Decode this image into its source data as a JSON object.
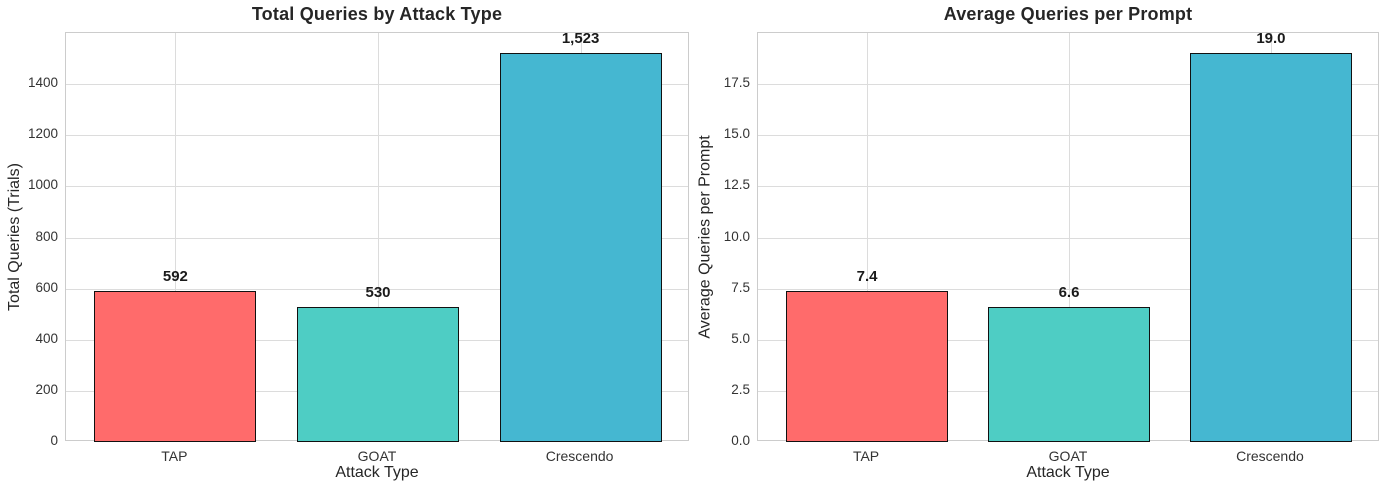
{
  "chart_data": [
    {
      "type": "bar",
      "title": "Total Queries by Attack Type",
      "xlabel": "Attack Type",
      "ylabel": "Total Queries (Trials)",
      "categories": [
        "TAP",
        "GOAT",
        "Crescendo"
      ],
      "values": [
        592,
        530,
        1523
      ],
      "value_labels": [
        "592",
        "530",
        "1,523"
      ],
      "yticks": [
        0,
        200,
        400,
        600,
        800,
        1000,
        1200,
        1400
      ],
      "ytick_labels": [
        "0",
        "200",
        "400",
        "600",
        "800",
        "1000",
        "1200",
        "1400"
      ],
      "ylim": [
        0,
        1600
      ],
      "bar_colors": [
        "#FF6B6B",
        "#4ECDC4",
        "#45B7D1"
      ],
      "grid": true,
      "legend": "none"
    },
    {
      "type": "bar",
      "title": "Average Queries per Prompt",
      "xlabel": "Attack Type",
      "ylabel": "Average Queries per Prompt",
      "categories": [
        "TAP",
        "GOAT",
        "Crescendo"
      ],
      "values": [
        7.4,
        6.6,
        19.0
      ],
      "value_labels": [
        "7.4",
        "6.6",
        "19.0"
      ],
      "yticks": [
        0,
        2.5,
        5,
        7.5,
        10,
        12.5,
        15,
        17.5
      ],
      "ytick_labels": [
        "0.0",
        "2.5",
        "5.0",
        "7.5",
        "10.0",
        "12.5",
        "15.0",
        "17.5"
      ],
      "ylim": [
        0,
        20
      ],
      "bar_colors": [
        "#FF6B6B",
        "#4ECDC4",
        "#45B7D1"
      ],
      "grid": true,
      "legend": "none"
    }
  ],
  "style": {
    "bar_edge_color": "#111111",
    "grid_color": "#dcdcdc",
    "spine_color": "#cccccc",
    "title_color": "#262626",
    "tick_color": "#333333",
    "background": "#ffffff"
  }
}
